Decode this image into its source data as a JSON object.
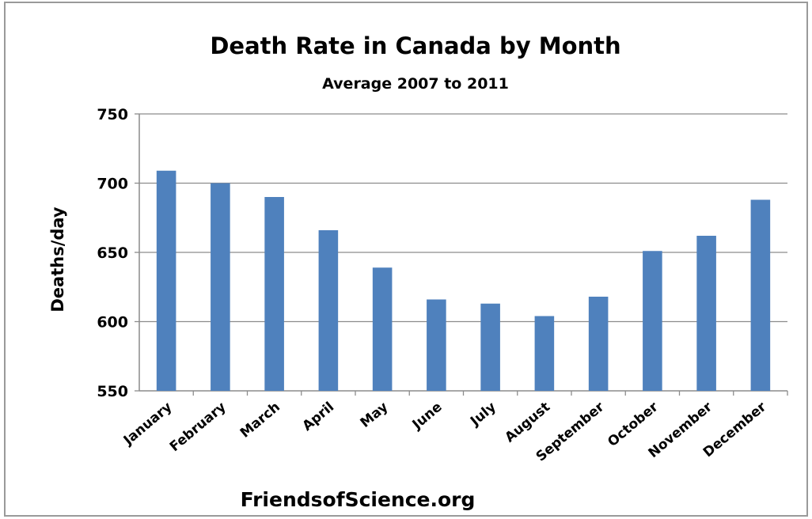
{
  "chart_data": {
    "type": "bar",
    "title": "Death Rate in Canada by Month",
    "subtitle": "Average 2007 to 2011",
    "xlabel": "",
    "ylabel": "Deaths/day",
    "ylim": [
      550,
      750
    ],
    "yticks": [
      550,
      600,
      650,
      700,
      750
    ],
    "grid": true,
    "legend": "none",
    "categories": [
      "January",
      "February",
      "March",
      "April",
      "May",
      "June",
      "July",
      "August",
      "September",
      "October",
      "November",
      "December"
    ],
    "values": [
      709,
      700,
      690,
      666,
      639,
      616,
      613,
      604,
      618,
      651,
      662,
      688
    ],
    "annotation": "FriendsofScience.org",
    "bar_color": "#4F81BD"
  }
}
